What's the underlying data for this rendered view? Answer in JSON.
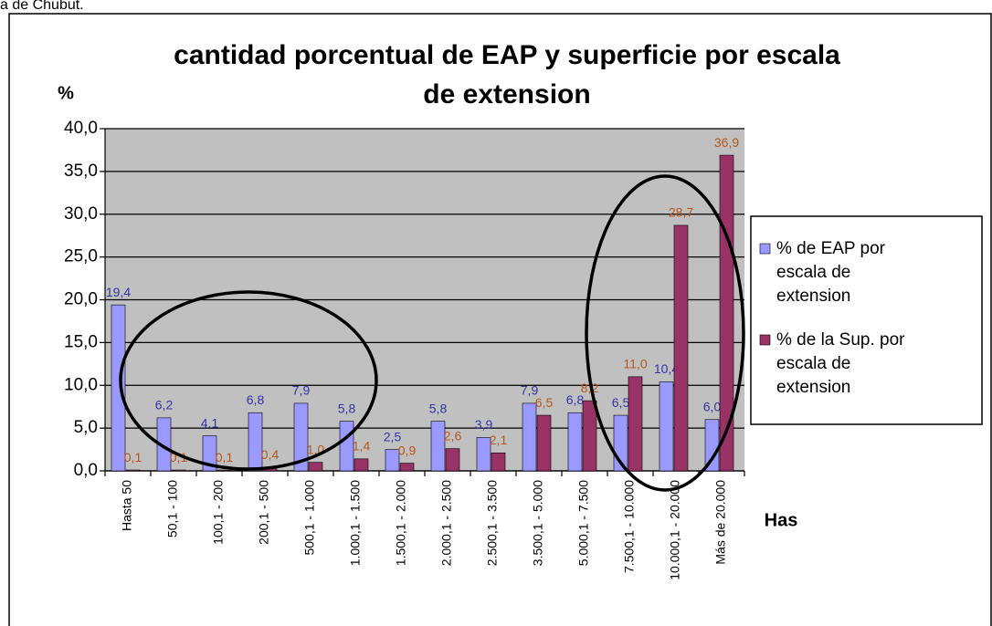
{
  "caption": "a de Chubut.",
  "chart_data": {
    "type": "bar",
    "title": "cantidad porcentual de EAP y superficie por escala de extension",
    "y_label": "%",
    "x_label": "Has",
    "categories": [
      "Hasta 50",
      "50,1 - 100",
      "100,1 - 200",
      "200,1 - 500",
      "500,1 - 1.000",
      "1.000,1 - 1.500",
      "1.500,1 - 2.000",
      "2.000,1 - 2.500",
      "2.500,1 - 3.500",
      "3.500,1 - 5.000",
      "5.000,1 - 7.500",
      "7.500,1 - 10.000",
      "10.000,1 - 20.000",
      "Más de 20.000"
    ],
    "series": [
      {
        "name": "% de EAP por escala de extension",
        "color": "#9999ff",
        "label_color": "#3333aa",
        "values": [
          19.4,
          6.2,
          4.1,
          6.8,
          7.9,
          5.8,
          2.5,
          5.8,
          3.9,
          7.9,
          6.8,
          6.5,
          10.4,
          6.0
        ],
        "value_labels": [
          "19,4",
          "6,2",
          "4,1",
          "6,8",
          "7,9",
          "5,8",
          "2,5",
          "5,8",
          "3,9",
          "7,9",
          "6,8",
          "6,5",
          "10,4",
          "6,0"
        ]
      },
      {
        "name": "% de la Sup. por escala de extension",
        "color": "#993366",
        "label_color": "#b8561a",
        "values": [
          0.1,
          0.1,
          0.1,
          0.4,
          1.0,
          1.4,
          0.9,
          2.6,
          2.1,
          6.5,
          8.2,
          11.0,
          28.7,
          36.9
        ],
        "value_labels": [
          "0,1",
          "0,1",
          "0,1",
          "0,4",
          "1,0",
          "1,4",
          "0,9",
          "2,6",
          "2,1",
          "6,5",
          "8,2",
          "11,0",
          "28,7",
          "36,9"
        ]
      }
    ],
    "ylim": [
      0,
      40
    ],
    "yticks": [
      {
        "value": 0,
        "label": "0,0"
      },
      {
        "value": 5,
        "label": "5,0"
      },
      {
        "value": 10,
        "label": "10,0"
      },
      {
        "value": 15,
        "label": "15,0"
      },
      {
        "value": 20,
        "label": "20,0"
      },
      {
        "value": 25,
        "label": "25,0"
      },
      {
        "value": 30,
        "label": "30,0"
      },
      {
        "value": 35,
        "label": "35,0"
      },
      {
        "value": 40,
        "label": "40,0"
      }
    ],
    "grid": true,
    "legend": "right"
  }
}
